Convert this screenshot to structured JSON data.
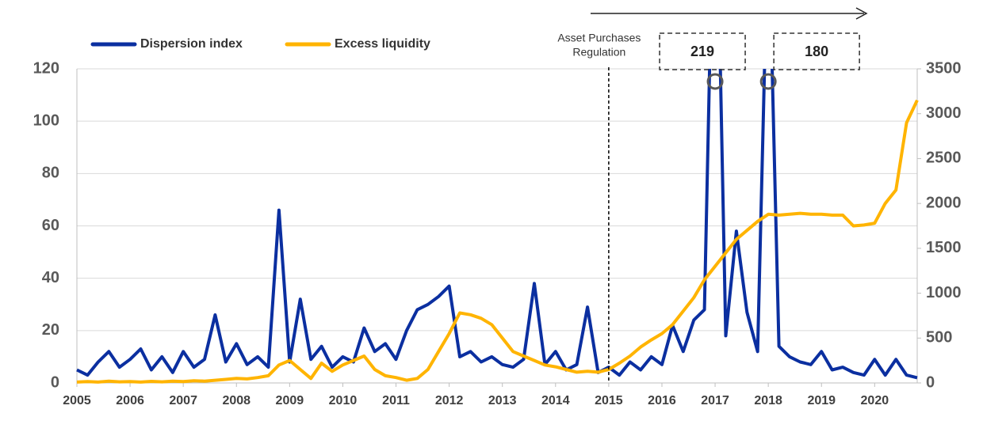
{
  "chart_data": {
    "type": "line",
    "x": [
      2005.0,
      2005.2,
      2005.4,
      2005.6,
      2005.8,
      2006.0,
      2006.2,
      2006.4,
      2006.6,
      2006.8,
      2007.0,
      2007.2,
      2007.4,
      2007.6,
      2007.8,
      2008.0,
      2008.2,
      2008.4,
      2008.6,
      2008.8,
      2009.0,
      2009.2,
      2009.4,
      2009.6,
      2009.8,
      2010.0,
      2010.2,
      2010.4,
      2010.6,
      2010.8,
      2011.0,
      2011.2,
      2011.4,
      2011.6,
      2011.8,
      2012.0,
      2012.2,
      2012.4,
      2012.6,
      2012.8,
      2013.0,
      2013.2,
      2013.4,
      2013.6,
      2013.8,
      2014.0,
      2014.2,
      2014.4,
      2014.6,
      2014.8,
      2015.0,
      2015.2,
      2015.4,
      2015.6,
      2015.8,
      2016.0,
      2016.2,
      2016.4,
      2016.6,
      2016.8,
      2017.0,
      2017.2,
      2017.4,
      2017.6,
      2017.8,
      2018.0,
      2018.2,
      2018.4,
      2018.6,
      2018.8,
      2019.0,
      2019.2,
      2019.4,
      2019.6,
      2019.8,
      2020.0,
      2020.2,
      2020.4,
      2020.6,
      2020.8
    ],
    "series": [
      {
        "name": "Dispersion index",
        "color": "#0b2fa0",
        "values": [
          5,
          3,
          8,
          12,
          6,
          9,
          13,
          5,
          10,
          4,
          12,
          6,
          9,
          26,
          8,
          15,
          7,
          10,
          6,
          66,
          8,
          32,
          9,
          14,
          6,
          10,
          8,
          21,
          12,
          15,
          9,
          20,
          28,
          30,
          33,
          37,
          10,
          12,
          8,
          10,
          7,
          6,
          9,
          38,
          7,
          12,
          5,
          7,
          29,
          4,
          6,
          3,
          8,
          5,
          10,
          7,
          22,
          12,
          24,
          28,
          219,
          18,
          58,
          27,
          12,
          180,
          14,
          10,
          8,
          7,
          12,
          5,
          6,
          4,
          3,
          9,
          3,
          9,
          3,
          2
        ],
        "value_labels": [
          null,
          null,
          null,
          null,
          null,
          null,
          null,
          null,
          null,
          null,
          null,
          null,
          null,
          null,
          null,
          null,
          null,
          null,
          null,
          null,
          null,
          null,
          null,
          null,
          null,
          null,
          null,
          null,
          null,
          null,
          null,
          null,
          null,
          null,
          null,
          null,
          null,
          null,
          null,
          null,
          null,
          null,
          null,
          null,
          null,
          null,
          null,
          null,
          null,
          null,
          null,
          null,
          null,
          null,
          null,
          null,
          null,
          null,
          null,
          null,
          "219",
          null,
          null,
          null,
          null,
          "180",
          null,
          null,
          null,
          null,
          null,
          null,
          null,
          null,
          null,
          null,
          null,
          null,
          null,
          null
        ]
      },
      {
        "name": "Excess liquidity",
        "color": "#ffb400",
        "axis": "y2",
        "values": [
          10,
          15,
          10,
          20,
          12,
          15,
          10,
          18,
          12,
          20,
          15,
          25,
          20,
          30,
          40,
          50,
          45,
          60,
          80,
          200,
          250,
          150,
          50,
          220,
          130,
          200,
          250,
          300,
          150,
          80,
          60,
          30,
          50,
          150,
          350,
          550,
          780,
          760,
          720,
          650,
          500,
          350,
          300,
          250,
          200,
          180,
          150,
          120,
          130,
          120,
          150,
          220,
          300,
          400,
          480,
          550,
          650,
          800,
          950,
          1150,
          1300,
          1450,
          1600,
          1700,
          1800,
          1880,
          1870,
          1880,
          1890,
          1880,
          1880,
          1870,
          1870,
          1750,
          1760,
          1780,
          2000,
          2150,
          2900,
          3150
        ]
      }
    ],
    "annotations": [
      {
        "x": 2015,
        "text": [
          "Asset  Purchases",
          "Regulation"
        ]
      }
    ],
    "xlim": [
      2005,
      2020.8
    ],
    "xticks": [
      2005,
      2006,
      2007,
      2008,
      2009,
      2010,
      2011,
      2012,
      2013,
      2014,
      2015,
      2016,
      2017,
      2018,
      2019,
      2020
    ],
    "ylim": [
      0,
      120
    ],
    "yticks": [
      0,
      20,
      40,
      60,
      80,
      100,
      120
    ],
    "y2lim": [
      0,
      3500
    ],
    "y2ticks": [
      0,
      500,
      1000,
      1500,
      2000,
      2500,
      3000,
      3500
    ],
    "grid": true,
    "legend": "top-left"
  }
}
